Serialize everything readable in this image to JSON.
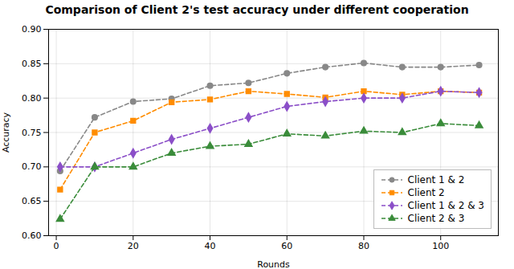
{
  "chart_data": {
    "type": "line",
    "title": "Comparison of Client 2's test accuracy under different cooperation",
    "xlabel": "Rounds",
    "ylabel": "Accuracy",
    "xlim": [
      -2,
      115
    ],
    "ylim": [
      0.6,
      0.9
    ],
    "xticks": [
      0,
      20,
      40,
      60,
      80,
      100
    ],
    "yticks": [
      {
        "value": 0.6,
        "label": "0.60"
      },
      0.65,
      {
        "value": 0.7,
        "label": "0.70"
      },
      0.75,
      {
        "value": 0.8,
        "label": "0.80"
      },
      0.85,
      {
        "value": 0.9,
        "label": "0.90"
      }
    ],
    "grid": true,
    "legend": "lower right",
    "x": [
      1,
      10,
      20,
      30,
      40,
      50,
      60,
      70,
      80,
      90,
      100,
      110
    ],
    "series": [
      {
        "name": "Client 1 & 2",
        "color": "#888888",
        "marker": "circle",
        "line_style": "dashed",
        "values": [
          0.694,
          0.772,
          0.795,
          0.799,
          0.818,
          0.822,
          0.836,
          0.845,
          0.851,
          0.845,
          0.845,
          0.848
        ]
      },
      {
        "name": "Client 2",
        "color": "#ff8c00",
        "marker": "square",
        "line_style": "dashed",
        "values": [
          0.667,
          0.75,
          0.767,
          0.794,
          0.798,
          0.81,
          0.806,
          0.801,
          0.81,
          0.805,
          0.81,
          0.808
        ]
      },
      {
        "name": "Client 1 & 2 & 3",
        "color": "#8b4fc8",
        "marker": "diamond",
        "line_style": "dashed",
        "values": [
          0.7,
          0.7,
          0.72,
          0.74,
          0.756,
          0.772,
          0.788,
          0.795,
          0.8,
          0.8,
          0.81,
          0.808
        ]
      },
      {
        "name": "Client 2 & 3",
        "color": "#3a8c3a",
        "marker": "triangle",
        "line_style": "dashed",
        "values": [
          0.624,
          0.7,
          0.7,
          0.72,
          0.73,
          0.733,
          0.748,
          0.745,
          0.752,
          0.75,
          0.763,
          0.76
        ]
      }
    ]
  }
}
